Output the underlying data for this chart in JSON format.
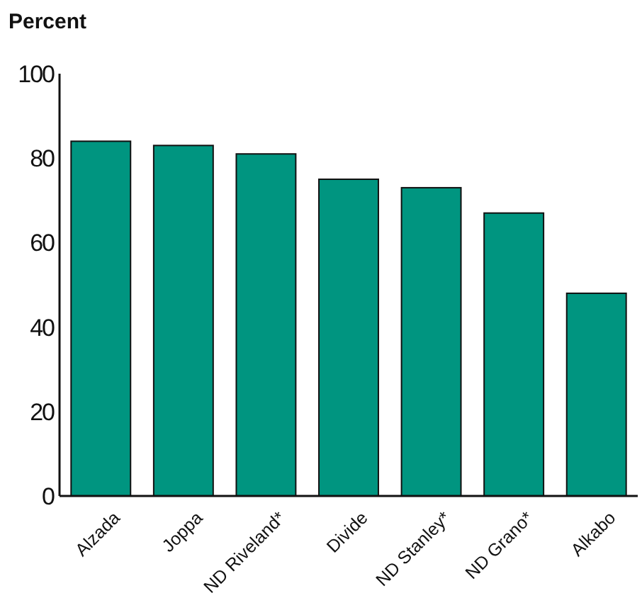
{
  "chart_data": {
    "type": "bar",
    "ylabel": "Percent",
    "categories": [
      "Alzada",
      "Joppa",
      "ND Riveland*",
      "Divide",
      "ND Stanley*",
      "ND Grano*",
      "Alkabo"
    ],
    "values": [
      84,
      83,
      81,
      75,
      73,
      67,
      48
    ],
    "color": "#009580",
    "ylim": [
      0,
      100
    ],
    "yticks": [
      0,
      20,
      40,
      60,
      80,
      100
    ],
    "grid": false
  }
}
